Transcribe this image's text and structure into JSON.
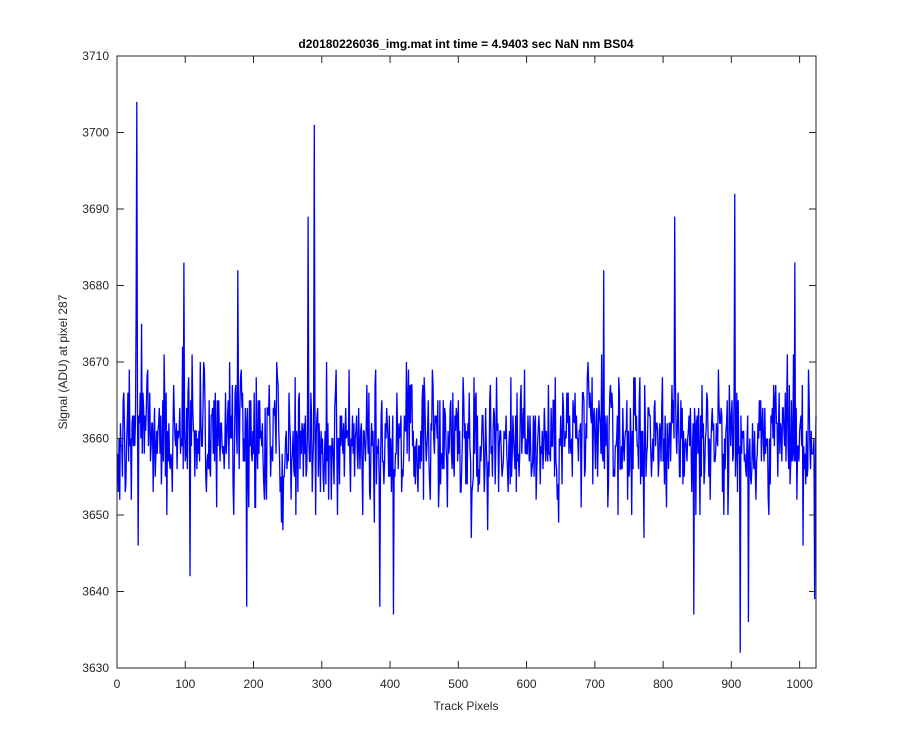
{
  "chart_data": {
    "type": "line",
    "title": "d20180226036_img.mat int time = 4.9403 sec  NaN nm BS04",
    "xlabel": "Track Pixels",
    "ylabel": "Signal (ADU) at pixel 287",
    "xlim": [
      0,
      1024
    ],
    "ylim": [
      3630,
      3710
    ],
    "x_ticks": [
      0,
      100,
      200,
      300,
      400,
      500,
      600,
      700,
      800,
      900,
      1000
    ],
    "y_ticks": [
      3630,
      3640,
      3650,
      3660,
      3670,
      3680,
      3690,
      3700,
      3710
    ],
    "grid": false,
    "line_color": "#0000ff",
    "series": [
      {
        "x_start": 1,
        "x_step": 1,
        "count": 1024,
        "baseline": 3660,
        "range": [
          3632,
          3704
        ],
        "notable_points": [
          {
            "x": 1,
            "y": 3658
          },
          {
            "x": 28,
            "y": 3676
          },
          {
            "x": 29,
            "y": 3704
          },
          {
            "x": 31,
            "y": 3646
          },
          {
            "x": 98,
            "y": 3683
          },
          {
            "x": 107,
            "y": 3642
          },
          {
            "x": 177,
            "y": 3682
          },
          {
            "x": 190,
            "y": 3638
          },
          {
            "x": 280,
            "y": 3689
          },
          {
            "x": 289,
            "y": 3701
          },
          {
            "x": 291,
            "y": 3650
          },
          {
            "x": 385,
            "y": 3638
          },
          {
            "x": 405,
            "y": 3637
          },
          {
            "x": 713,
            "y": 3682
          },
          {
            "x": 817,
            "y": 3689
          },
          {
            "x": 845,
            "y": 3637
          },
          {
            "x": 905,
            "y": 3692
          },
          {
            "x": 913,
            "y": 3632
          },
          {
            "x": 925,
            "y": 3636
          },
          {
            "x": 993,
            "y": 3683
          },
          {
            "x": 1022,
            "y": 3639
          },
          {
            "x": 1024,
            "y": 3663
          }
        ]
      }
    ]
  }
}
